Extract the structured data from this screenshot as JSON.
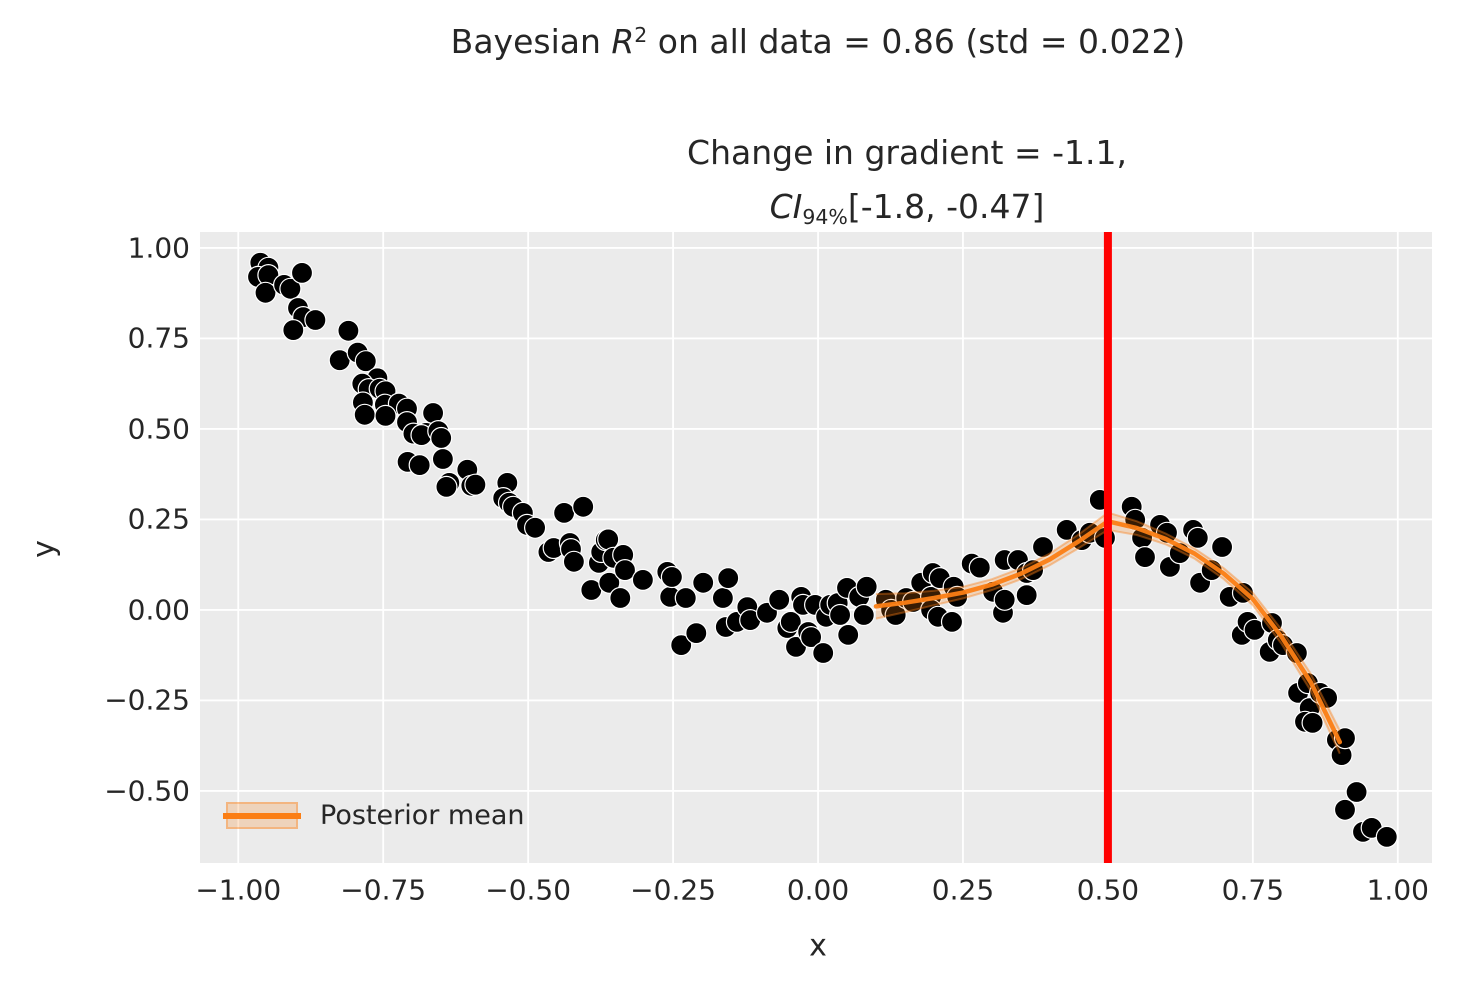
{
  "title": {
    "prefix": "Bayesian ",
    "r_symbol": "R",
    "r_exponent": "2",
    "suffix": " on all data = 0.86 (std = 0.022)"
  },
  "subtitle": {
    "line1": "Change in gradient = -1.1,",
    "ci_label": "CI",
    "ci_subscript": "94%",
    "ci_interval": "[-1.8, -0.47]"
  },
  "axes": {
    "xlabel": "x",
    "ylabel": "y"
  },
  "legend": {
    "label": "Posterior mean"
  },
  "colors": {
    "plot_bg": "#ebebeb",
    "grid": "#ffffff",
    "scatter": "#000000",
    "scatter_edge": "#ffffff",
    "posterior": "#fb7e14",
    "vline": "#ff0000",
    "text": "#262626"
  },
  "chart_data": {
    "type": "scatter",
    "title": "Bayesian R^2 on all data = 0.86 (std = 0.022)",
    "subtitle": "Change in gradient = -1.1, CI_94% [-1.8, -0.47]",
    "xlabel": "x",
    "ylabel": "y",
    "grid": true,
    "legend_position": "lower left",
    "xlim": [
      -1.066,
      1.059
    ],
    "ylim": [
      -0.699,
      1.044
    ],
    "x_tick_values": [
      -1.0,
      -0.75,
      -0.5,
      -0.25,
      0.0,
      0.25,
      0.5,
      0.75,
      1.0
    ],
    "x_tick_labels": [
      "−1.00",
      "−0.75",
      "−0.50",
      "−0.25",
      "0.00",
      "0.25",
      "0.50",
      "0.75",
      "1.00"
    ],
    "y_tick_values": [
      1.0,
      0.75,
      0.5,
      0.25,
      0.0,
      -0.25,
      -0.5
    ],
    "y_tick_labels": [
      "1.00",
      "0.75",
      "0.50",
      "0.25",
      "0.00",
      "−0.25",
      "−0.50"
    ],
    "breakpoint_line": {
      "x": 0.5
    },
    "scatter_points": [
      [
        -0.962,
        0.959
      ],
      [
        -0.948,
        0.945
      ],
      [
        -0.966,
        0.92
      ],
      [
        -0.948,
        0.925
      ],
      [
        -0.953,
        0.876
      ],
      [
        -0.921,
        0.898
      ],
      [
        -0.91,
        0.887
      ],
      [
        -0.89,
        0.931
      ],
      [
        -0.897,
        0.834
      ],
      [
        -0.888,
        0.809
      ],
      [
        -0.867,
        0.801
      ],
      [
        -0.905,
        0.773
      ],
      [
        -0.81,
        0.771
      ],
      [
        -0.825,
        0.69
      ],
      [
        -0.794,
        0.711
      ],
      [
        -0.78,
        0.687
      ],
      [
        -0.76,
        0.64
      ],
      [
        -0.786,
        0.625
      ],
      [
        -0.775,
        0.61
      ],
      [
        -0.756,
        0.611
      ],
      [
        -0.746,
        0.604
      ],
      [
        -0.785,
        0.573
      ],
      [
        -0.747,
        0.567
      ],
      [
        -0.723,
        0.57
      ],
      [
        -0.709,
        0.556
      ],
      [
        -0.782,
        0.539
      ],
      [
        -0.746,
        0.536
      ],
      [
        -0.709,
        0.519
      ],
      [
        -0.698,
        0.487
      ],
      [
        -0.664,
        0.544
      ],
      [
        -0.676,
        0.489
      ],
      [
        -0.684,
        0.483
      ],
      [
        -0.655,
        0.494
      ],
      [
        -0.65,
        0.475
      ],
      [
        -0.708,
        0.409
      ],
      [
        -0.687,
        0.4
      ],
      [
        -0.647,
        0.417
      ],
      [
        -0.605,
        0.387
      ],
      [
        -0.636,
        0.351
      ],
      [
        -0.641,
        0.34
      ],
      [
        -0.598,
        0.343
      ],
      [
        -0.591,
        0.346
      ],
      [
        -0.536,
        0.351
      ],
      [
        -0.543,
        0.309
      ],
      [
        -0.533,
        0.296
      ],
      [
        -0.526,
        0.285
      ],
      [
        -0.509,
        0.268
      ],
      [
        -0.502,
        0.235
      ],
      [
        -0.488,
        0.227
      ],
      [
        -0.465,
        0.16
      ],
      [
        -0.456,
        0.171
      ],
      [
        -0.438,
        0.268
      ],
      [
        -0.405,
        0.285
      ],
      [
        -0.428,
        0.185
      ],
      [
        -0.426,
        0.168
      ],
      [
        -0.421,
        0.133
      ],
      [
        -0.391,
        0.055
      ],
      [
        -0.378,
        0.13
      ],
      [
        -0.374,
        0.16
      ],
      [
        -0.366,
        0.193
      ],
      [
        -0.362,
        0.195
      ],
      [
        -0.36,
        0.075
      ],
      [
        -0.353,
        0.144
      ],
      [
        -0.341,
        0.033
      ],
      [
        -0.336,
        0.152
      ],
      [
        -0.333,
        0.11
      ],
      [
        -0.302,
        0.083
      ],
      [
        -0.26,
        0.105
      ],
      [
        -0.255,
        0.036
      ],
      [
        -0.252,
        0.091
      ],
      [
        -0.236,
        -0.097
      ],
      [
        -0.228,
        0.033
      ],
      [
        -0.21,
        -0.064
      ],
      [
        -0.198,
        0.075
      ],
      [
        -0.164,
        0.033
      ],
      [
        -0.159,
        -0.047
      ],
      [
        -0.155,
        0.088
      ],
      [
        -0.14,
        -0.033
      ],
      [
        -0.122,
        0.008
      ],
      [
        -0.117,
        -0.028
      ],
      [
        -0.088,
        -0.008
      ],
      [
        -0.067,
        0.028
      ],
      [
        -0.053,
        -0.05
      ],
      [
        -0.047,
        -0.033
      ],
      [
        -0.038,
        -0.102
      ],
      [
        -0.029,
        0.036
      ],
      [
        -0.026,
        0.014
      ],
      [
        -0.017,
        -0.061
      ],
      [
        -0.012,
        -0.075
      ],
      [
        -0.005,
        0.014
      ],
      [
        0.009,
        -0.119
      ],
      [
        0.014,
        -0.019
      ],
      [
        0.021,
        0.014
      ],
      [
        0.034,
        0.019
      ],
      [
        0.038,
        -0.014
      ],
      [
        0.05,
        0.061
      ],
      [
        0.052,
        -0.069
      ],
      [
        0.071,
        0.036
      ],
      [
        0.079,
        -0.014
      ],
      [
        0.084,
        0.064
      ],
      [
        0.117,
        0.028
      ],
      [
        0.126,
        0.0
      ],
      [
        0.134,
        -0.014
      ],
      [
        0.152,
        0.033
      ],
      [
        0.164,
        0.022
      ],
      [
        0.178,
        0.075
      ],
      [
        0.195,
        0.036
      ],
      [
        0.195,
        0.0
      ],
      [
        0.198,
        0.102
      ],
      [
        0.207,
        -0.019
      ],
      [
        0.21,
        0.088
      ],
      [
        0.231,
        -0.033
      ],
      [
        0.234,
        0.064
      ],
      [
        0.24,
        0.036
      ],
      [
        0.265,
        0.128
      ],
      [
        0.279,
        0.117
      ],
      [
        0.302,
        0.05
      ],
      [
        0.319,
        -0.008
      ],
      [
        0.322,
        0.138
      ],
      [
        0.322,
        0.028
      ],
      [
        0.345,
        0.138
      ],
      [
        0.36,
        0.102
      ],
      [
        0.36,
        0.041
      ],
      [
        0.371,
        0.11
      ],
      [
        0.388,
        0.174
      ],
      [
        0.429,
        0.221
      ],
      [
        0.455,
        0.193
      ],
      [
        0.469,
        0.213
      ],
      [
        0.486,
        0.304
      ],
      [
        0.495,
        0.199
      ],
      [
        0.541,
        0.285
      ],
      [
        0.547,
        0.249
      ],
      [
        0.559,
        0.199
      ],
      [
        0.564,
        0.146
      ],
      [
        0.59,
        0.235
      ],
      [
        0.602,
        0.213
      ],
      [
        0.607,
        0.119
      ],
      [
        0.624,
        0.157
      ],
      [
        0.647,
        0.221
      ],
      [
        0.655,
        0.199
      ],
      [
        0.659,
        0.075
      ],
      [
        0.679,
        0.11
      ],
      [
        0.697,
        0.174
      ],
      [
        0.71,
        0.036
      ],
      [
        0.733,
        0.047
      ],
      [
        0.731,
        -0.069
      ],
      [
        0.741,
        -0.033
      ],
      [
        0.753,
        -0.055
      ],
      [
        0.779,
        -0.116
      ],
      [
        0.783,
        -0.036
      ],
      [
        0.793,
        -0.083
      ],
      [
        0.802,
        -0.097
      ],
      [
        0.826,
        -0.119
      ],
      [
        0.828,
        -0.229
      ],
      [
        0.845,
        -0.202
      ],
      [
        0.848,
        -0.271
      ],
      [
        0.84,
        -0.309
      ],
      [
        0.853,
        -0.312
      ],
      [
        0.866,
        -0.229
      ],
      [
        0.878,
        -0.243
      ],
      [
        0.895,
        -0.359
      ],
      [
        0.903,
        -0.401
      ],
      [
        0.909,
        -0.354
      ],
      [
        0.909,
        -0.552
      ],
      [
        0.929,
        -0.503
      ],
      [
        0.94,
        -0.613
      ],
      [
        0.955,
        -0.602
      ],
      [
        0.981,
        -0.627
      ]
    ],
    "posterior_mean": {
      "label": "Posterior mean",
      "x": [
        0.1,
        0.15,
        0.2,
        0.25,
        0.3,
        0.35,
        0.4,
        0.45,
        0.5,
        0.55,
        0.6,
        0.65,
        0.7,
        0.75,
        0.8,
        0.85,
        0.9
      ],
      "y": [
        0.01,
        0.02,
        0.033,
        0.048,
        0.07,
        0.1,
        0.14,
        0.19,
        0.245,
        0.226,
        0.196,
        0.155,
        0.1,
        0.03,
        -0.075,
        -0.2,
        -0.365
      ],
      "ci_halfwidth": [
        0.034,
        0.026,
        0.02,
        0.016,
        0.015,
        0.015,
        0.016,
        0.019,
        0.024,
        0.019,
        0.015,
        0.014,
        0.015,
        0.017,
        0.02,
        0.024,
        0.032
      ]
    }
  }
}
